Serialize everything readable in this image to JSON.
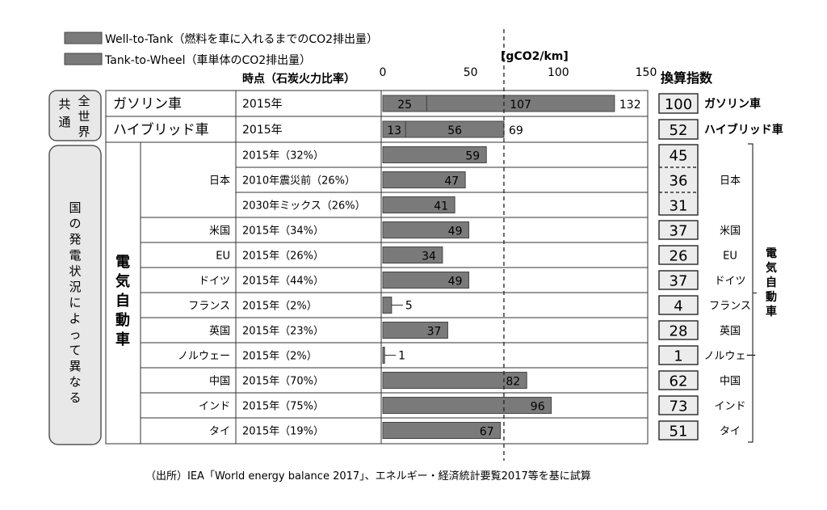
{
  "legend": [
    {
      "label": "Well-to-Tank（燃料を車に入れるまでのCO2排出量）",
      "color": "#7a7a7a"
    },
    {
      "label": "Tank-to-Wheel（車単体のCO2排出量）",
      "color": "#7a7a7a"
    }
  ],
  "headers": {
    "period": "時点（石炭火力比率）",
    "unit": "[gCO2/km]",
    "index": "換算指数"
  },
  "groups": {
    "common_left": "共通",
    "common_right": "全世界",
    "country_note": "国の発電状況によって異なる",
    "ev": "電気自動車",
    "ev_bracket": "電気自動車"
  },
  "source": "（出所）IEA「World energy balance 2017」、エネルギー・経済統計要覧2017等を基に試算",
  "chart_data": {
    "type": "bar",
    "orientation": "horizontal",
    "xlim": [
      0,
      150
    ],
    "xticks": [
      0,
      50,
      100,
      150
    ],
    "reference_line": 69,
    "rows": [
      {
        "vehicle": "ガソリン車",
        "country": "",
        "period": "2015年",
        "wtt": 25,
        "ttw": 107,
        "total": 132,
        "index": 100,
        "right_label": "ガソリン車"
      },
      {
        "vehicle": "ハイブリッド車",
        "country": "",
        "period": "2015年",
        "wtt": 13,
        "ttw": 56,
        "total": 69,
        "index": 52,
        "right_label": "ハイブリッド車"
      },
      {
        "vehicle": "",
        "country": "日本",
        "period": "2015年（32%）",
        "wtt": 59,
        "ttw": 0,
        "total": 59,
        "index": 45,
        "right_label": "日本"
      },
      {
        "vehicle": "",
        "country": "",
        "period": "2010年震災前（26%）",
        "wtt": 47,
        "ttw": 0,
        "total": 47,
        "index": 36,
        "right_label": ""
      },
      {
        "vehicle": "",
        "country": "",
        "period": "2030年ミックス（26%）",
        "wtt": 41,
        "ttw": 0,
        "total": 41,
        "index": 31,
        "right_label": ""
      },
      {
        "vehicle": "",
        "country": "米国",
        "period": "2015年（34%）",
        "wtt": 49,
        "ttw": 0,
        "total": 49,
        "index": 37,
        "right_label": "米国"
      },
      {
        "vehicle": "",
        "country": "EU",
        "period": "2015年（26%）",
        "wtt": 34,
        "ttw": 0,
        "total": 34,
        "index": 26,
        "right_label": "EU"
      },
      {
        "vehicle": "",
        "country": "ドイツ",
        "period": "2015年（44%）",
        "wtt": 49,
        "ttw": 0,
        "total": 49,
        "index": 37,
        "right_label": "ドイツ"
      },
      {
        "vehicle": "",
        "country": "フランス",
        "period": "2015年（2%）",
        "wtt": 5,
        "ttw": 0,
        "total": 5,
        "index": 4,
        "right_label": "フランス"
      },
      {
        "vehicle": "",
        "country": "英国",
        "period": "2015年（23%）",
        "wtt": 37,
        "ttw": 0,
        "total": 37,
        "index": 28,
        "right_label": "英国"
      },
      {
        "vehicle": "",
        "country": "ノルウェー",
        "period": "2015年（2%）",
        "wtt": 1,
        "ttw": 0,
        "total": 1,
        "index": 1,
        "right_label": "ノルウェー"
      },
      {
        "vehicle": "",
        "country": "中国",
        "period": "2015年（70%）",
        "wtt": 82,
        "ttw": 0,
        "total": 82,
        "index": 62,
        "right_label": "中国"
      },
      {
        "vehicle": "",
        "country": "インド",
        "period": "2015年（75%）",
        "wtt": 96,
        "ttw": 0,
        "total": 96,
        "index": 73,
        "right_label": "インド"
      },
      {
        "vehicle": "",
        "country": "タイ",
        "period": "2015年（19%）",
        "wtt": 67,
        "ttw": 0,
        "total": 67,
        "index": 51,
        "right_label": "タイ"
      }
    ]
  }
}
